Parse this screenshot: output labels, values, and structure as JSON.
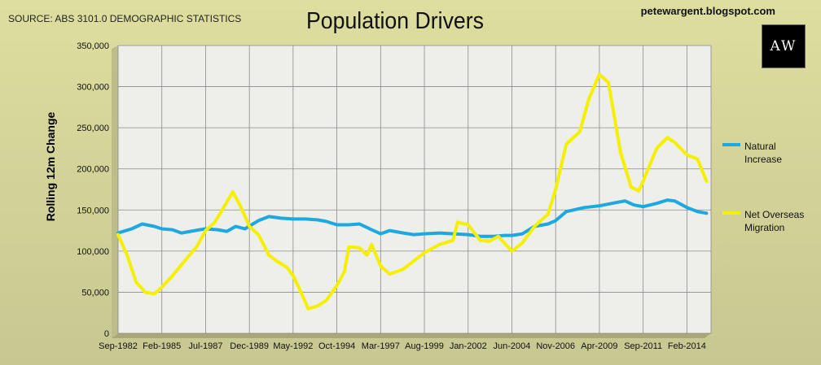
{
  "header": {
    "source": "SOURCE: ABS 3101.0 DEMOGRAPHIC STATISTICS",
    "title": "Population Drivers",
    "blog": "petewargent.blogspot.com",
    "logo_text": "AW"
  },
  "colors": {
    "natural_increase": "#1ea8e0",
    "net_overseas_migration": "#f5f000",
    "plot_bg": "#eeeeea",
    "grid": "#8a8a8a"
  },
  "chart_data": {
    "type": "line",
    "title": "Population Drivers",
    "ylabel": "Rolling 12m Change",
    "xlabel": "",
    "ylim": [
      0,
      350000
    ],
    "yticks": [
      "0",
      "50,000",
      "100,000",
      "150,000",
      "200,000",
      "250,000",
      "300,000",
      "350,000"
    ],
    "xlim": [
      "Sep-1982",
      "Jun-2015"
    ],
    "xticks": [
      "Sep-1982",
      "Feb-1985",
      "Jul-1987",
      "Dec-1989",
      "May-1992",
      "Oct-1994",
      "Mar-1997",
      "Aug-1999",
      "Jan-2002",
      "Jun-2004",
      "Nov-2006",
      "Apr-2009",
      "Sep-2011",
      "Feb-2014"
    ],
    "grid": true,
    "legend": "right",
    "series": [
      {
        "name": "Natural Increase",
        "points": [
          [
            "1982-09",
            122000
          ],
          [
            "1983-06",
            127000
          ],
          [
            "1984-01",
            133000
          ],
          [
            "1984-09",
            130000
          ],
          [
            "1985-02",
            127000
          ],
          [
            "1985-09",
            126000
          ],
          [
            "1986-03",
            122000
          ],
          [
            "1986-09",
            124000
          ],
          [
            "1987-03",
            126000
          ],
          [
            "1987-07",
            127000
          ],
          [
            "1988-03",
            126000
          ],
          [
            "1988-09",
            124000
          ],
          [
            "1989-03",
            130000
          ],
          [
            "1989-09",
            127000
          ],
          [
            "1990-06",
            137000
          ],
          [
            "1991-01",
            142000
          ],
          [
            "1991-09",
            140000
          ],
          [
            "1992-05",
            139000
          ],
          [
            "1993-01",
            139000
          ],
          [
            "1993-09",
            138000
          ],
          [
            "1994-03",
            136000
          ],
          [
            "1994-10",
            132000
          ],
          [
            "1995-06",
            132000
          ],
          [
            "1996-01",
            133000
          ],
          [
            "1996-09",
            126000
          ],
          [
            "1997-03",
            121000
          ],
          [
            "1997-09",
            125000
          ],
          [
            "1998-06",
            122000
          ],
          [
            "1999-01",
            120000
          ],
          [
            "1999-08",
            121000
          ],
          [
            "2000-06",
            122000
          ],
          [
            "2001-03",
            121000
          ],
          [
            "2002-01",
            120000
          ],
          [
            "2002-09",
            118000
          ],
          [
            "2003-06",
            118000
          ],
          [
            "2004-01",
            119000
          ],
          [
            "2004-06",
            119000
          ],
          [
            "2005-01",
            121000
          ],
          [
            "2005-09",
            130000
          ],
          [
            "2006-06",
            133000
          ],
          [
            "2006-11",
            137000
          ],
          [
            "2007-06",
            148000
          ],
          [
            "2008-06",
            153000
          ],
          [
            "2009-04",
            155000
          ],
          [
            "2010-03",
            159000
          ],
          [
            "2010-09",
            161000
          ],
          [
            "2011-03",
            156000
          ],
          [
            "2011-09",
            154000
          ],
          [
            "2012-06",
            158000
          ],
          [
            "2013-01",
            162000
          ],
          [
            "2013-06",
            161000
          ],
          [
            "2014-02",
            153000
          ],
          [
            "2014-09",
            148000
          ],
          [
            "2015-03",
            146000
          ]
        ]
      },
      {
        "name": "Net Overseas Migration",
        "points": [
          [
            "1982-09",
            120000
          ],
          [
            "1983-03",
            95000
          ],
          [
            "1983-09",
            62000
          ],
          [
            "1984-03",
            50000
          ],
          [
            "1984-09",
            48000
          ],
          [
            "1985-02",
            56000
          ],
          [
            "1985-09",
            70000
          ],
          [
            "1986-06",
            90000
          ],
          [
            "1987-01",
            105000
          ],
          [
            "1987-07",
            125000
          ],
          [
            "1988-01",
            135000
          ],
          [
            "1988-06",
            150000
          ],
          [
            "1989-01",
            172000
          ],
          [
            "1989-06",
            155000
          ],
          [
            "1989-12",
            130000
          ],
          [
            "1990-06",
            120000
          ],
          [
            "1991-01",
            95000
          ],
          [
            "1991-06",
            88000
          ],
          [
            "1992-01",
            80000
          ],
          [
            "1992-05",
            70000
          ],
          [
            "1992-09",
            55000
          ],
          [
            "1993-03",
            30000
          ],
          [
            "1993-09",
            33000
          ],
          [
            "1994-03",
            40000
          ],
          [
            "1994-10",
            58000
          ],
          [
            "1995-03",
            75000
          ],
          [
            "1995-06",
            105000
          ],
          [
            "1996-01",
            104000
          ],
          [
            "1996-06",
            95000
          ],
          [
            "1996-09",
            108000
          ],
          [
            "1997-03",
            82000
          ],
          [
            "1997-09",
            72000
          ],
          [
            "1998-06",
            78000
          ],
          [
            "1999-01",
            88000
          ],
          [
            "1999-08",
            98000
          ],
          [
            "2000-06",
            108000
          ],
          [
            "2001-03",
            113000
          ],
          [
            "2001-06",
            135000
          ],
          [
            "2002-01",
            132000
          ],
          [
            "2002-09",
            113000
          ],
          [
            "2003-03",
            112000
          ],
          [
            "2003-09",
            118000
          ],
          [
            "2004-06",
            100000
          ],
          [
            "2005-01",
            110000
          ],
          [
            "2005-09",
            130000
          ],
          [
            "2006-06",
            145000
          ],
          [
            "2006-11",
            175000
          ],
          [
            "2007-06",
            230000
          ],
          [
            "2008-03",
            245000
          ],
          [
            "2008-09",
            285000
          ],
          [
            "2009-04",
            315000
          ],
          [
            "2009-10",
            305000
          ],
          [
            "2010-06",
            220000
          ],
          [
            "2011-01",
            178000
          ],
          [
            "2011-06",
            173000
          ],
          [
            "2011-09",
            185000
          ],
          [
            "2012-06",
            225000
          ],
          [
            "2013-01",
            238000
          ],
          [
            "2013-06",
            232000
          ],
          [
            "2014-02",
            217000
          ],
          [
            "2014-09",
            212000
          ],
          [
            "2015-03",
            185000
          ]
        ]
      }
    ]
  }
}
